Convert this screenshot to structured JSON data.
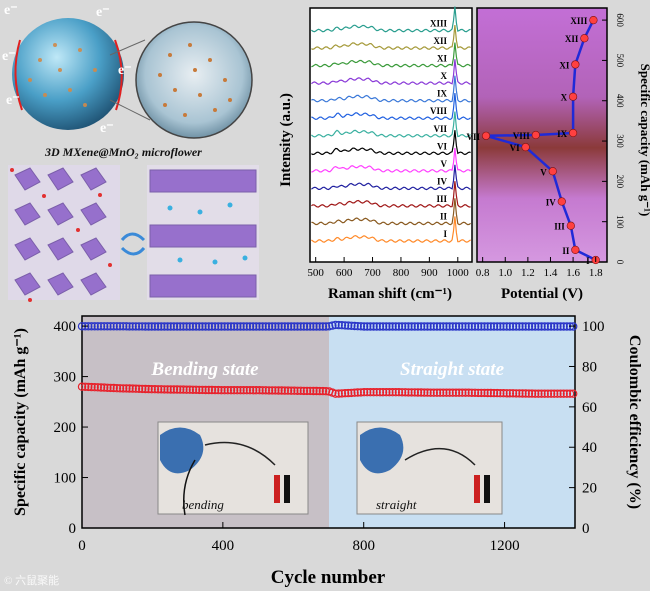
{
  "colors": {
    "background": "#d9d9d9",
    "capacity_series": "#e8202a",
    "efficiency_series": "#2a35c8",
    "bending_region": "#c7c0c6",
    "straight_region": "#c8dff2",
    "potential_curve": "#1f2ad8",
    "marker_fill": "#ff4040"
  },
  "labels": {
    "electron": "e⁻",
    "microflower_caption": "3D MXene@MnO₂ microflower",
    "watermark": "© 六鼠聚能"
  },
  "raman": {
    "ylabel": "Intensity (a.u.)",
    "xlabel": "Raman shift (cm⁻¹)",
    "xticks": [
      "500",
      "600",
      "700",
      "800",
      "900",
      "1000"
    ],
    "spectra": [
      "XIII",
      "XII",
      "XI",
      "X",
      "IX",
      "VIII",
      "VII",
      "VI",
      "V",
      "IV",
      "III",
      "II",
      "I"
    ],
    "colors": [
      "#2a9e8f",
      "#a59a3a",
      "#3a9a3a",
      "#8a3ad8",
      "#3a78d8",
      "#2060e0",
      "#3ab0a0",
      "#000000",
      "#ff40ff",
      "#2020a0",
      "#a01818",
      "#8a5a20",
      "#ff8a2a"
    ]
  },
  "potential": {
    "xlabel": "Potential (V)",
    "ylabel": "Specific capacity (mAh g⁻¹)",
    "xticks": [
      "0.8",
      "1.0",
      "1.2",
      "1.4",
      "1.6",
      "1.8"
    ],
    "yticks": [
      "0",
      "100",
      "200",
      "300",
      "400",
      "500",
      "600"
    ],
    "points": [
      {
        "label": "I",
        "potential": 1.8,
        "capacity": 5
      },
      {
        "label": "II",
        "potential": 1.62,
        "capacity": 30
      },
      {
        "label": "III",
        "potential": 1.58,
        "capacity": 90
      },
      {
        "label": "IV",
        "potential": 1.5,
        "capacity": 150
      },
      {
        "label": "V",
        "potential": 1.42,
        "capacity": 225
      },
      {
        "label": "VI",
        "potential": 1.18,
        "capacity": 285
      },
      {
        "label": "VII",
        "potential": 0.83,
        "capacity": 313
      },
      {
        "label": "VIII",
        "potential": 1.27,
        "capacity": 315
      },
      {
        "label": "IX",
        "potential": 1.6,
        "capacity": 320
      },
      {
        "label": "X",
        "potential": 1.6,
        "capacity": 410
      },
      {
        "label": "XI",
        "potential": 1.62,
        "capacity": 490
      },
      {
        "label": "XII",
        "potential": 1.7,
        "capacity": 555
      },
      {
        "label": "XIII",
        "potential": 1.78,
        "capacity": 600
      }
    ]
  },
  "chart_data": {
    "type": "scatter",
    "xlabel": "Cycle number",
    "ylabel": "Specific capacity (mAh g⁻¹)",
    "y2label": "Coulombic efficiency (%)",
    "xlim": [
      0,
      1400
    ],
    "ylim": [
      0,
      420
    ],
    "y2lim": [
      0,
      105
    ],
    "xticks": [
      "0",
      "400",
      "800",
      "1200"
    ],
    "yticks": [
      "0",
      "100",
      "200",
      "300",
      "400"
    ],
    "y2ticks": [
      "0",
      "20",
      "40",
      "60",
      "80",
      "100"
    ],
    "regions": [
      {
        "label": "Bending state",
        "from": 0,
        "to": 700
      },
      {
        "label": "Straight state",
        "from": 700,
        "to": 1400
      }
    ],
    "series": [
      {
        "axis": "left",
        "x": [
          0,
          100,
          200,
          300,
          400,
          500,
          600,
          700,
          720,
          800,
          900,
          1000,
          1100,
          1200,
          1300,
          1400
        ],
        "values": [
          280,
          277,
          275,
          274,
          273,
          273,
          272,
          271,
          266,
          269,
          269,
          268,
          268,
          267,
          266,
          266
        ]
      },
      {
        "axis": "right",
        "x": [
          0,
          100,
          200,
          300,
          400,
          500,
          600,
          700,
          720,
          800,
          900,
          1000,
          1100,
          1200,
          1300,
          1400
        ],
        "values": [
          99.9,
          99.9,
          99.8,
          99.8,
          99.8,
          99.8,
          99.8,
          99.8,
          100.6,
          99.8,
          99.8,
          99.8,
          99.8,
          99.8,
          99.8,
          99.8
        ]
      }
    ],
    "inset_labels": [
      "bending",
      "straight"
    ]
  }
}
